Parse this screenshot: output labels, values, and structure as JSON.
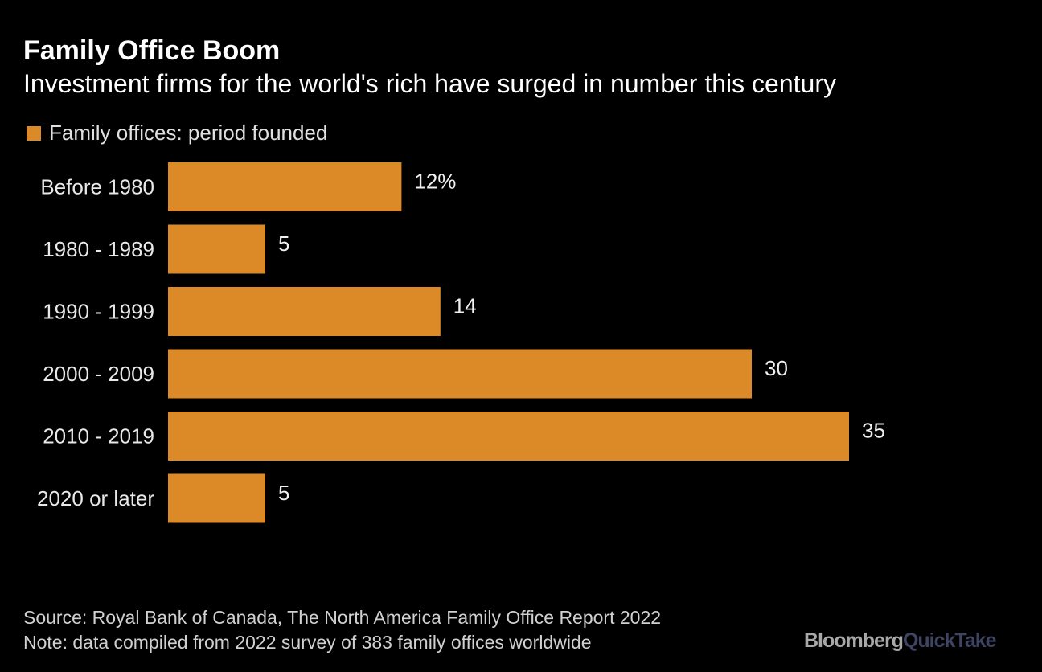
{
  "title": "Family Office Boom",
  "subtitle": "Investment firms for the world's rich have surged in number this century",
  "colors": {
    "bar": "#dc8a27",
    "background": "#000000"
  },
  "chart_data": {
    "type": "bar",
    "orientation": "horizontal",
    "categories": [
      "Before 1980",
      "1980 - 1989",
      "1990 - 1999",
      "2000 - 2009",
      "2010 - 2019",
      "2020 or later"
    ],
    "series": [
      {
        "name": "Family offices: period founded",
        "values": [
          12,
          5,
          14,
          30,
          35,
          5
        ]
      }
    ],
    "data_labels": [
      "12%",
      "5",
      "14",
      "30",
      "35",
      "5"
    ],
    "unit": "%",
    "legend": "top-left",
    "grid": false
  },
  "footer": {
    "source": "Source: Royal Bank of Canada, The North America Family Office Report 2022",
    "note": "Note: data compiled from 2022 survey of 383 family offices worldwide"
  },
  "logo": {
    "part1": "Bloomberg",
    "part2": "QuickTake"
  }
}
